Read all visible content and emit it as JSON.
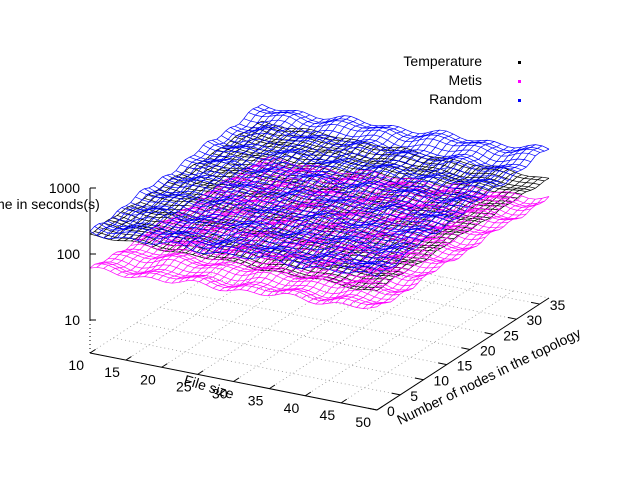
{
  "chart_data": {
    "type": "surface",
    "title": "",
    "xlabel": "File size",
    "ylabel": "Number of nodes in the topology",
    "zlabel": "Time in seconds(s)",
    "zscale": "log",
    "xlim": [
      10,
      50
    ],
    "ylim": [
      0,
      37
    ],
    "zlim": [
      1,
      1000
    ],
    "xticks": [
      "10",
      "15",
      "20",
      "25",
      "30",
      "35",
      "40",
      "45",
      "50"
    ],
    "yticks": [
      "0",
      "5",
      "10",
      "15",
      "20",
      "25",
      "30",
      "35"
    ],
    "zticks": [
      "10",
      "100",
      "1000"
    ],
    "grid": true,
    "legend_position": "top-right",
    "series": [
      {
        "name": "Temperature",
        "color": "#000000",
        "approx_time_s": {
          "low": 170,
          "high": 250
        }
      },
      {
        "name": "Metis",
        "color": "#ff00ff",
        "approx_time_s": {
          "low": 45,
          "high": 180
        }
      },
      {
        "name": "Random",
        "color": "#0000ff",
        "approx_time_s": {
          "low": 150,
          "high": 900
        }
      }
    ]
  }
}
